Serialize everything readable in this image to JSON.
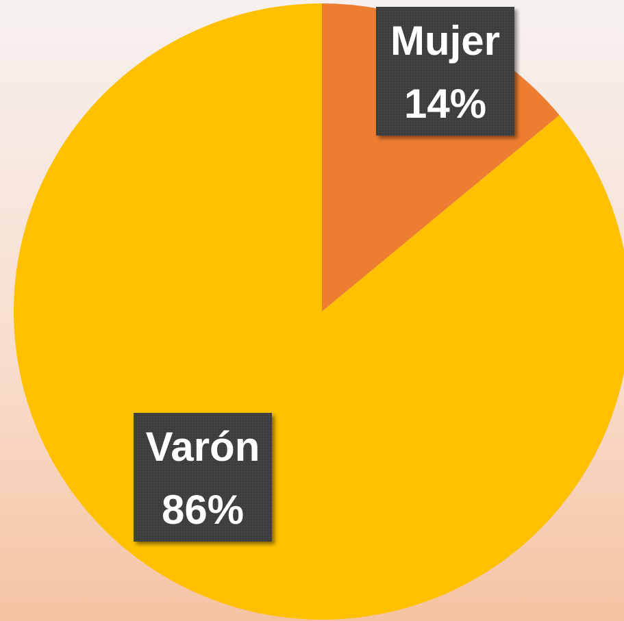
{
  "chart_data": {
    "type": "pie",
    "categories": [
      "Mujer",
      "Varón"
    ],
    "values": [
      14,
      86
    ],
    "value_labels": [
      "14%",
      "86%"
    ],
    "colors": [
      "#ED7D31",
      "#FFC000"
    ]
  }
}
